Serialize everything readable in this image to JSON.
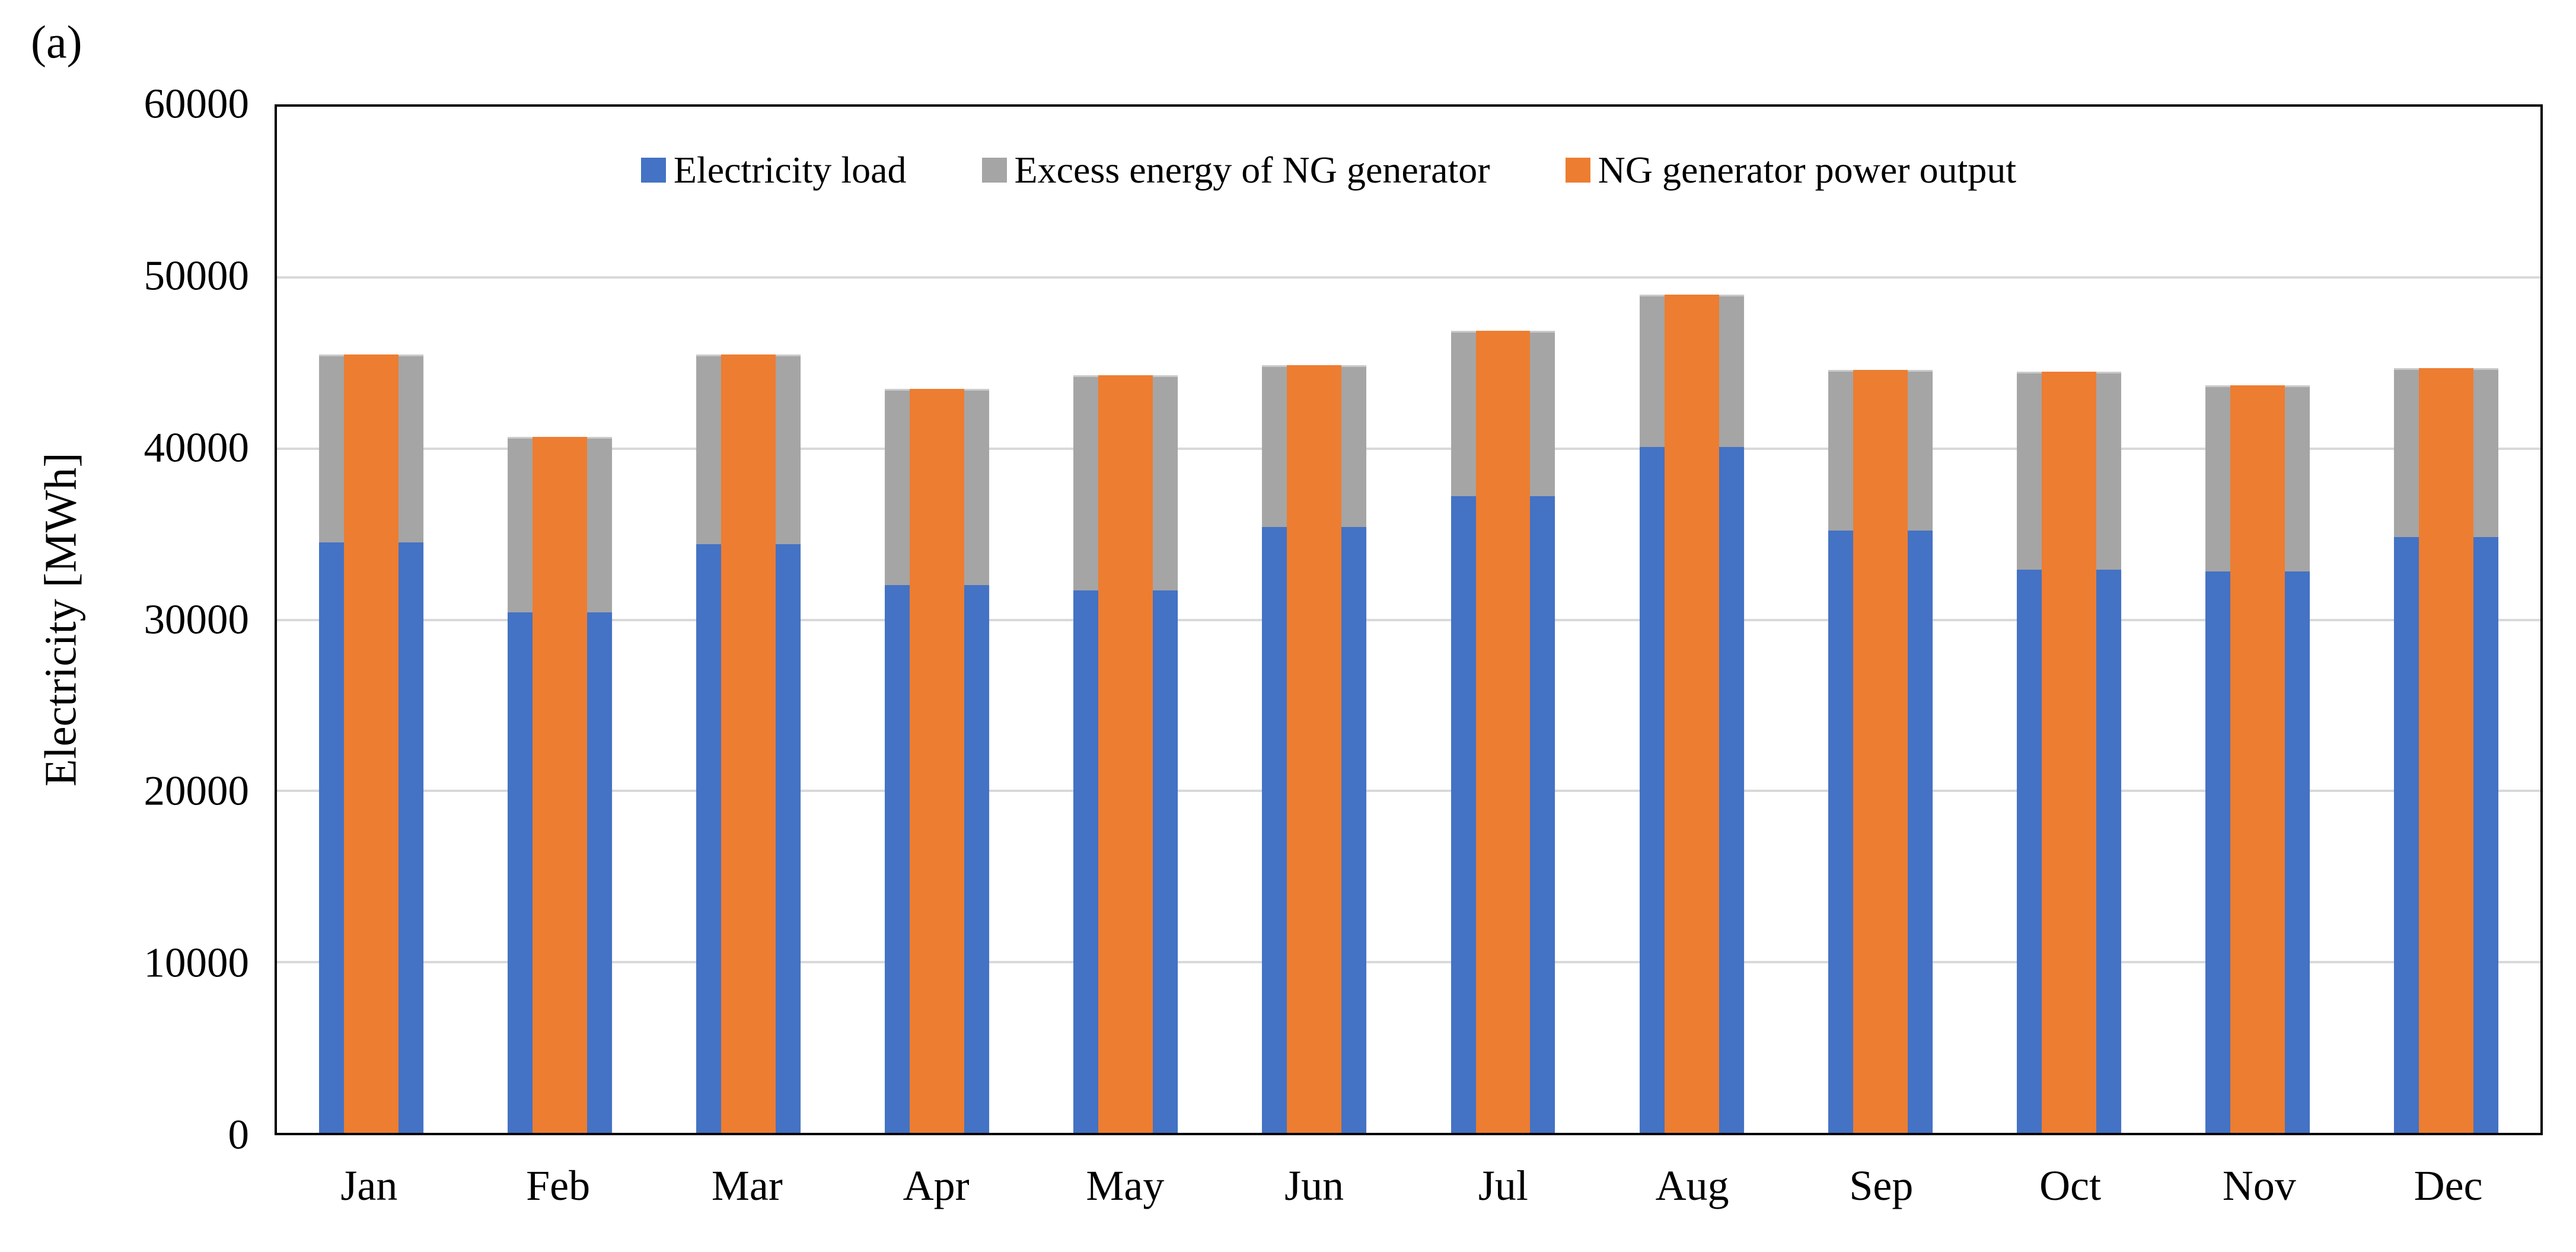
{
  "figure_label": "(a)",
  "colors": {
    "load": "#4472C4",
    "excess": "#A5A5A5",
    "output": "#ED7D31",
    "gridline": "#D9D9D9",
    "axis": "#000000"
  },
  "chart_data": {
    "type": "bar",
    "title": "",
    "xlabel": "",
    "ylabel": "Electricity [MWh]",
    "ylim": [
      0,
      60000
    ],
    "y_ticks": [
      0,
      10000,
      20000,
      30000,
      40000,
      50000,
      60000
    ],
    "grid": "horizontal",
    "legend_position": "top-center",
    "categories": [
      "Jan",
      "Feb",
      "Mar",
      "Apr",
      "May",
      "Jun",
      "Jul",
      "Aug",
      "Sep",
      "Oct",
      "Nov",
      "Dec"
    ],
    "series": [
      {
        "name": "Electricity load",
        "role": "load",
        "color": "#4472C4",
        "values": [
          34600,
          30500,
          34500,
          32100,
          31800,
          35500,
          37300,
          40200,
          35300,
          33000,
          32900,
          34900
        ]
      },
      {
        "name": "Excess energy of NG generator",
        "role": "excess",
        "color": "#A5A5A5",
        "values": [
          10900,
          10200,
          11000,
          11400,
          12500,
          9400,
          9600,
          8800,
          9300,
          11500,
          10800,
          9800
        ]
      },
      {
        "name": "NG generator power output",
        "role": "output",
        "color": "#ED7D31",
        "values": [
          45500,
          40700,
          45500,
          43500,
          44300,
          44900,
          46900,
          49000,
          44600,
          44500,
          43700,
          44700
        ]
      }
    ]
  }
}
